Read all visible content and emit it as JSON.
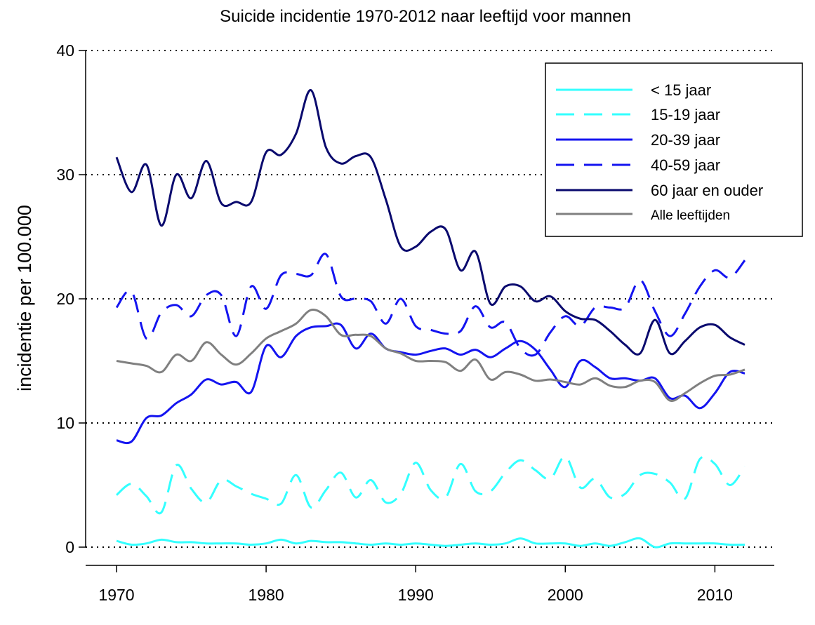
{
  "chart_data": {
    "type": "line",
    "title": "Suicide incidentie 1970-2012 naar leeftijd voor mannen",
    "xlabel": "",
    "ylabel": "incidentie per 100.000",
    "xlim": [
      1970,
      2012
    ],
    "ylim": [
      0,
      40
    ],
    "x_ticks": [
      "1970",
      "1980",
      "1990",
      "2000",
      "2010"
    ],
    "y_ticks": [
      "0",
      "10",
      "20",
      "30",
      "40"
    ],
    "grid": "horizontal-dotted",
    "legend_position": "top-right",
    "x": [
      1970,
      1971,
      1972,
      1973,
      1974,
      1975,
      1976,
      1977,
      1978,
      1979,
      1980,
      1981,
      1982,
      1983,
      1984,
      1985,
      1986,
      1987,
      1988,
      1989,
      1990,
      1991,
      1992,
      1993,
      1994,
      1995,
      1996,
      1997,
      1998,
      1999,
      2000,
      2001,
      2002,
      2003,
      2004,
      2005,
      2006,
      2007,
      2008,
      2009,
      2010,
      2011,
      2012
    ],
    "series": [
      {
        "name": "< 15 jaar",
        "color": "#33ffff",
        "dash": "solid",
        "values": [
          0.5,
          0.2,
          0.3,
          0.6,
          0.4,
          0.4,
          0.3,
          0.3,
          0.3,
          0.2,
          0.3,
          0.6,
          0.3,
          0.5,
          0.4,
          0.4,
          0.3,
          0.2,
          0.3,
          0.2,
          0.3,
          0.2,
          0.1,
          0.2,
          0.3,
          0.2,
          0.3,
          0.7,
          0.3,
          0.3,
          0.3,
          0.1,
          0.3,
          0.1,
          0.4,
          0.7,
          0.0,
          0.3,
          0.3,
          0.3,
          0.3,
          0.2,
          0.2
        ]
      },
      {
        "name": "15-19 jaar",
        "color": "#33ffff",
        "dash": "dashed",
        "values": [
          4.2,
          5.1,
          4.1,
          2.8,
          6.6,
          4.7,
          3.6,
          5.4,
          4.9,
          4.3,
          3.9,
          3.5,
          5.8,
          3.2,
          4.6,
          6.0,
          4.0,
          5.4,
          3.6,
          4.3,
          6.8,
          4.6,
          4.0,
          6.7,
          4.5,
          4.5,
          6.0,
          7.0,
          6.2,
          5.5,
          7.3,
          4.8,
          5.5,
          4.0,
          4.3,
          5.8,
          5.9,
          5.2,
          3.9,
          7.1,
          6.7,
          5.0,
          6.5
        ]
      },
      {
        "name": "20-39 jaar",
        "color": "#1414f0",
        "dash": "solid",
        "values": [
          8.6,
          8.5,
          10.4,
          10.6,
          11.6,
          12.3,
          13.5,
          13.1,
          13.3,
          12.5,
          16.2,
          15.3,
          17.0,
          17.7,
          17.8,
          17.9,
          16.0,
          17.2,
          16.0,
          15.7,
          15.5,
          15.8,
          16.0,
          15.5,
          15.9,
          15.3,
          16.0,
          16.6,
          15.9,
          14.3,
          12.9,
          15.0,
          14.5,
          13.6,
          13.6,
          13.4,
          13.6,
          12.0,
          12.2,
          11.2,
          12.4,
          14.1,
          14.0
        ]
      },
      {
        "name": "40-59 jaar",
        "color": "#1414f0",
        "dash": "dashed",
        "values": [
          19.3,
          20.6,
          16.8,
          18.9,
          19.5,
          18.6,
          20.3,
          20.3,
          17.0,
          21.0,
          19.2,
          21.9,
          22.0,
          21.9,
          23.6,
          20.2,
          20.0,
          19.8,
          18.0,
          20.0,
          17.8,
          17.5,
          17.2,
          17.4,
          19.4,
          17.7,
          18.1,
          16.0,
          15.5,
          17.3,
          18.6,
          17.8,
          19.3,
          19.3,
          19.3,
          21.5,
          19.0,
          17.0,
          18.8,
          21.0,
          22.3,
          21.7,
          23.1
        ]
      },
      {
        "name": "60 jaar en ouder",
        "color": "#0a0a6e",
        "dash": "solid",
        "values": [
          31.4,
          28.6,
          30.8,
          25.9,
          30.0,
          28.1,
          31.1,
          27.7,
          27.8,
          27.8,
          31.8,
          31.6,
          33.3,
          36.8,
          32.2,
          30.9,
          31.5,
          31.4,
          28.0,
          24.2,
          24.2,
          25.4,
          25.6,
          22.3,
          23.8,
          19.6,
          21.0,
          21.0,
          19.8,
          20.2,
          19.0,
          18.4,
          18.3,
          17.4,
          16.3,
          15.6,
          18.3,
          15.6,
          16.6,
          17.7,
          17.9,
          16.9,
          16.3
        ]
      },
      {
        "name": "Alle leeftijden",
        "color": "#808080",
        "dash": "solid",
        "values": [
          15.0,
          14.8,
          14.6,
          14.1,
          15.5,
          15.0,
          16.5,
          15.5,
          14.7,
          15.6,
          16.8,
          17.4,
          18.0,
          19.1,
          18.6,
          17.1,
          17.1,
          17.0,
          16.0,
          15.6,
          15.0,
          15.0,
          14.9,
          14.2,
          15.1,
          13.5,
          14.1,
          13.9,
          13.4,
          13.5,
          13.3,
          13.1,
          13.6,
          13.0,
          12.9,
          13.4,
          13.3,
          11.8,
          12.4,
          13.2,
          13.8,
          13.9,
          14.3
        ]
      }
    ]
  }
}
